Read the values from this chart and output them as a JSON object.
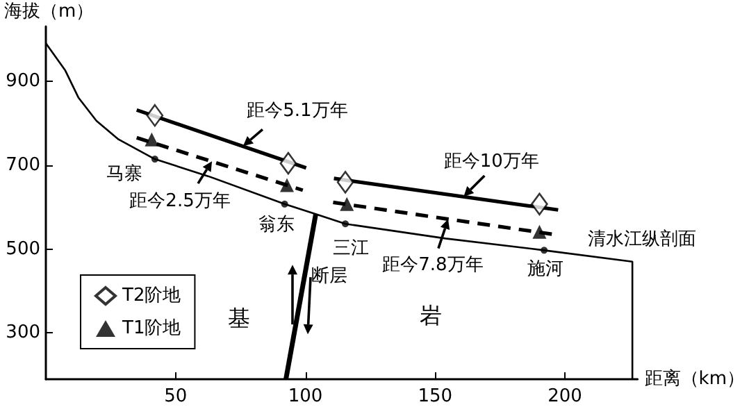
{
  "chart_data": {
    "type": "line",
    "xlabel": "距离（km）",
    "ylabel": "海拔（m）",
    "xlim": [
      0,
      228
    ],
    "xticks": [
      50,
      100,
      150,
      200
    ],
    "ylim": [
      190,
      1030
    ],
    "yticks": [
      300,
      500,
      700,
      900
    ],
    "legend": "bottom left",
    "series": [
      {
        "color": "#000000",
        "marker": "none",
        "x": [
          0,
          7.4,
          12.6,
          19.5,
          28,
          42,
          62.7,
          92,
          104,
          115.4,
          119.7,
          154,
          192,
          226,
          226
        ],
        "values": [
          990,
          926,
          860,
          805,
          761,
          714,
          673,
          607,
          583,
          560,
          556,
          525,
          497,
          470,
          190
        ]
      },
      {
        "color": "#000000",
        "marker": "none",
        "x": [
          104,
          92.5
        ],
        "values": [
          583,
          190
        ]
      },
      {
        "color": "#000000",
        "marker": "none",
        "line_style": "solid",
        "x": [
          35,
          100.3,
          105,
          111,
          197.4
        ],
        "values": [
          831,
          693,
          null,
          668,
          593
        ]
      },
      {
        "color": "#000000",
        "marker": "none",
        "line_style": "dashed",
        "x": [
          35,
          99,
          105,
          110.7,
          196.5
        ],
        "values": [
          765,
          640,
          null,
          611,
          534
        ]
      },
      {
        "type": "scatter",
        "name": "T2阶地",
        "color": "#000000",
        "marker": "diamond",
        "x": [
          42,
          93.4,
          115.4,
          190.2
        ],
        "values": [
          818,
          704,
          659,
          607
        ]
      },
      {
        "type": "scatter",
        "name": "T1阶地",
        "color": "#000000",
        "marker": "triangle",
        "x": [
          40.8,
          92.9,
          116,
          190.2
        ],
        "values": [
          761,
          652,
          607,
          541
        ]
      },
      {
        "type": "scatter",
        "color": "#000000",
        "marker": "circle",
        "x": [
          42,
          92,
          115.4,
          192
        ],
        "values": [
          714,
          607,
          560,
          497
        ]
      }
    ],
    "annotations": [
      {
        "text": "距今5.1万年",
        "x": 76,
        "y": 745
      },
      {
        "text": "距今2.5万年",
        "x": 64,
        "y": 709
      },
      {
        "text": "距今10万年",
        "x": 161,
        "y": 625
      },
      {
        "text": "距今7.8万年",
        "x": 155,
        "y": 571
      },
      {
        "text": "马寨",
        "x": 42,
        "y": 714
      },
      {
        "text": "翁东",
        "x": 92,
        "y": 607
      },
      {
        "text": "三江",
        "x": 115.4,
        "y": 560
      },
      {
        "text": "施河",
        "x": 192,
        "y": 497
      },
      {
        "text": "清水江纵剖面",
        "x": 226,
        "y": 470
      },
      {
        "text": "断层",
        "x": 99.7,
        "y": 435
      },
      "基",
      "岩"
    ]
  }
}
